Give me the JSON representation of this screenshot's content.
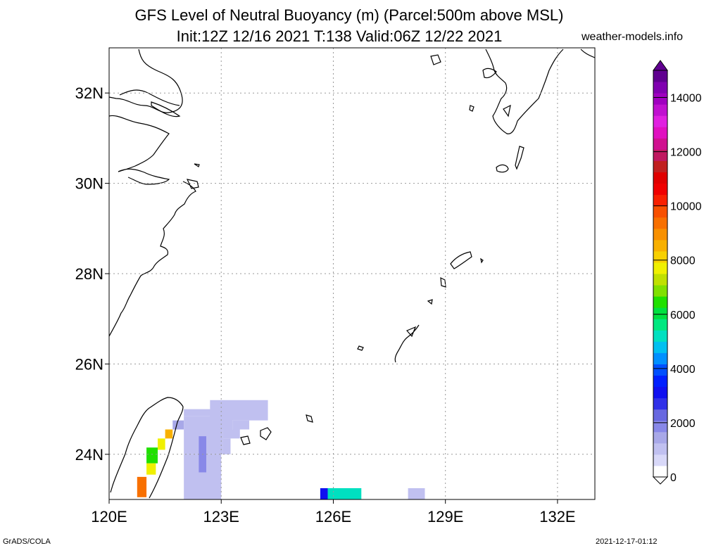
{
  "title_line1": "GFS Level of Neutral Buoyancy (m) (Parcel:500m above MSL)",
  "title_line2": "Init:12Z 12/16 2021 T:138 Valid:06Z 12/22 2021",
  "site": "weather-models.info",
  "footer_left": "GrADS/COLA",
  "footer_right": "2021-12-17-01:12",
  "map": {
    "lon_range": [
      120,
      133
    ],
    "lat_range": [
      23,
      33
    ],
    "lon_ticks": [
      {
        "value": 120,
        "label": "120E"
      },
      {
        "value": 123,
        "label": "123E"
      },
      {
        "value": 126,
        "label": "126E"
      },
      {
        "value": 129,
        "label": "129E"
      },
      {
        "value": 132,
        "label": "132E"
      }
    ],
    "lat_ticks": [
      {
        "value": 24,
        "label": "24N"
      },
      {
        "value": 26,
        "label": "26N"
      },
      {
        "value": 28,
        "label": "28N"
      },
      {
        "value": 30,
        "label": "30N"
      },
      {
        "value": 32,
        "label": "32N"
      }
    ],
    "grid": true,
    "shaded_cells": [
      {
        "lon": [
          122.0,
          124.0
        ],
        "lat": [
          24.85,
          25.0
        ],
        "value": 1200
      },
      {
        "lon": [
          122.7,
          124.25
        ],
        "lat": [
          24.75,
          25.2
        ],
        "value": 1200
      },
      {
        "lon": [
          121.7,
          122.0
        ],
        "lat": [
          24.55,
          24.75
        ],
        "value": 1500
      },
      {
        "lon": [
          122.0,
          123.3
        ],
        "lat": [
          24.55,
          24.85
        ],
        "value": 1200
      },
      {
        "lon": [
          123.3,
          123.75
        ],
        "lat": [
          24.55,
          24.75
        ],
        "value": 1200
      },
      {
        "lon": [
          122.0,
          123.05
        ],
        "lat": [
          24.0,
          24.55
        ],
        "value": 1200
      },
      {
        "lon": [
          123.05,
          123.5
        ],
        "lat": [
          24.35,
          24.55
        ],
        "value": 1200
      },
      {
        "lon": [
          123.05,
          123.25
        ],
        "lat": [
          24.0,
          24.35
        ],
        "value": 1200
      },
      {
        "lon": [
          122.0,
          123.0
        ],
        "lat": [
          23.0,
          24.0
        ],
        "value": 1200
      },
      {
        "lon": [
          122.4,
          122.6
        ],
        "lat": [
          23.6,
          24.4
        ],
        "value": 1700
      },
      {
        "lon": [
          121.5,
          121.7
        ],
        "lat": [
          24.35,
          24.55
        ],
        "value": 8500
      },
      {
        "lon": [
          121.3,
          121.5
        ],
        "lat": [
          24.1,
          24.35
        ],
        "value": 7500
      },
      {
        "lon": [
          121.0,
          121.3
        ],
        "lat": [
          23.8,
          24.15
        ],
        "value": 6500
      },
      {
        "lon": [
          121.0,
          121.25
        ],
        "lat": [
          23.55,
          23.8
        ],
        "value": 7500
      },
      {
        "lon": [
          120.75,
          121.0
        ],
        "lat": [
          23.05,
          23.5
        ],
        "value": 9500
      },
      {
        "lon": [
          125.65,
          125.85
        ],
        "lat": [
          23.0,
          23.25
        ],
        "value": 3000
      },
      {
        "lon": [
          125.85,
          126.75
        ],
        "lat": [
          23.0,
          23.25
        ],
        "value": 5000
      },
      {
        "lon": [
          128.0,
          128.45
        ],
        "lat": [
          23.0,
          23.25
        ],
        "value": 1200
      }
    ]
  },
  "colorbar": {
    "min": 0,
    "max": 15000,
    "tick_labels": [
      {
        "value": 0,
        "label": "0"
      },
      {
        "value": 2000,
        "label": "2000"
      },
      {
        "value": 4000,
        "label": "4000"
      },
      {
        "value": 6000,
        "label": "6000"
      },
      {
        "value": 8000,
        "label": "8000"
      },
      {
        "value": 10000,
        "label": "10000"
      },
      {
        "value": 12000,
        "label": "12000"
      },
      {
        "value": 14000,
        "label": "14000"
      }
    ],
    "colors": [
      "#ffffff",
      "#d8d8f8",
      "#c0c0f0",
      "#a8a8e8",
      "#8888e8",
      "#6868e0",
      "#3030e8",
      "#1010f0",
      "#0020ff",
      "#0050ff",
      "#0090ff",
      "#00c0f0",
      "#00e0c0",
      "#00e880",
      "#00e040",
      "#20e000",
      "#80e000",
      "#c0e000",
      "#f0f000",
      "#f8d000",
      "#f8b000",
      "#f89000",
      "#f87000",
      "#f85000",
      "#f82000",
      "#f00000",
      "#e00000",
      "#c02020",
      "#c01860",
      "#d01090",
      "#e010c0",
      "#e020e0",
      "#c010d0",
      "#a000c0",
      "#8000b0",
      "#600090"
    ]
  }
}
